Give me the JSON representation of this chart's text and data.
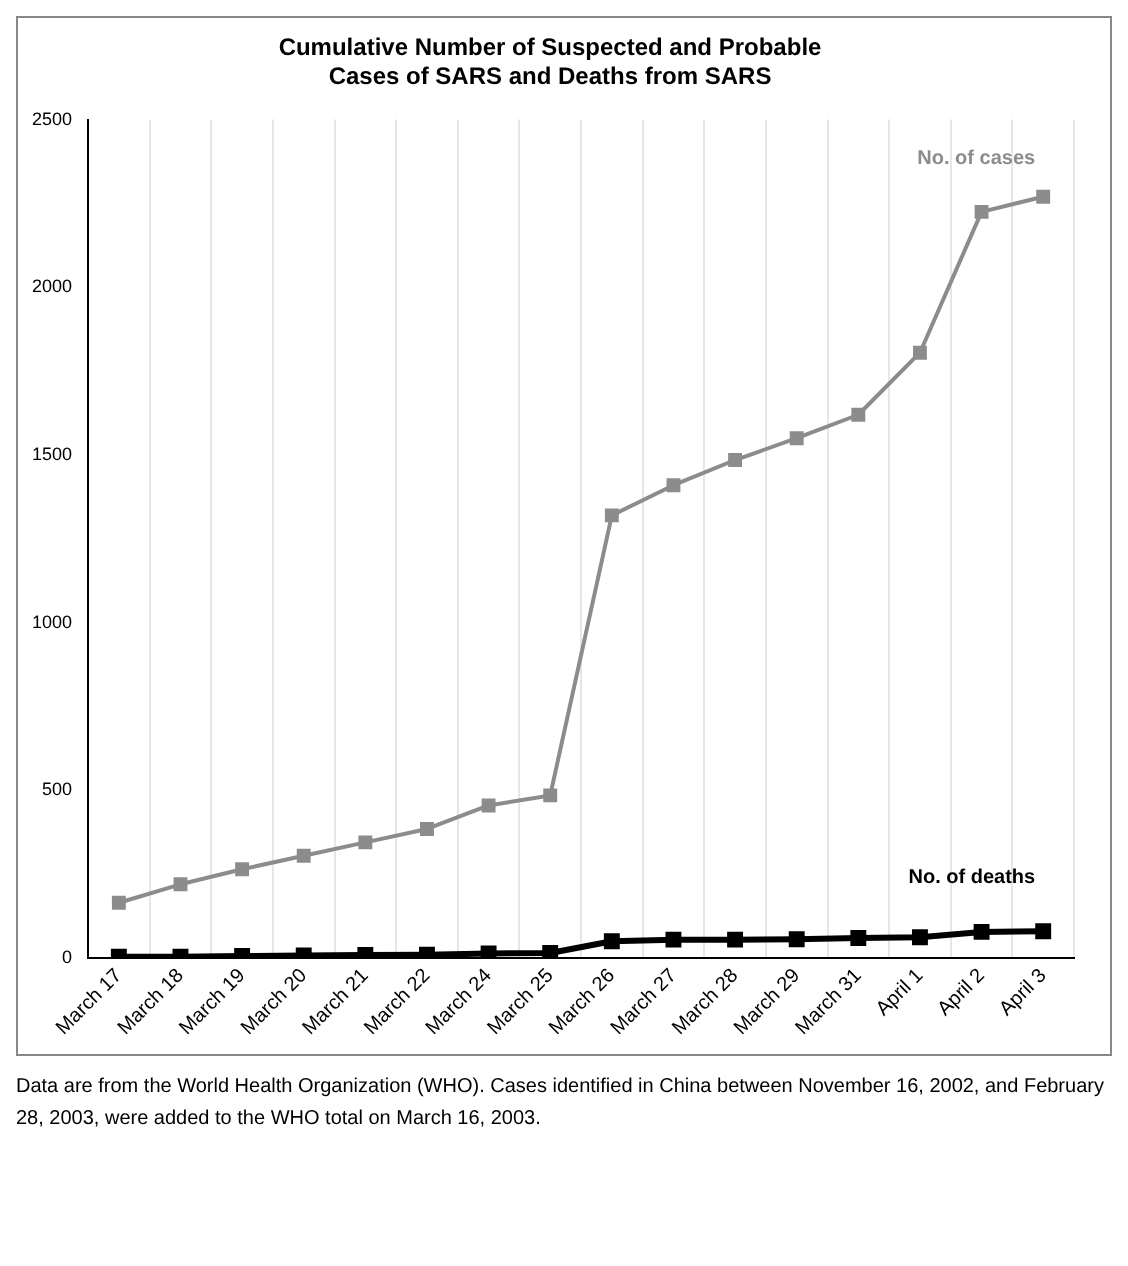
{
  "chart_data": {
    "type": "line",
    "title": "Cumulative Number of Suspected and Probable\nCases of SARS and Deaths from SARS",
    "categories": [
      "March 17",
      "March 18",
      "March 19",
      "March 20",
      "March 21",
      "March 22",
      "March 24",
      "March 25",
      "March 26",
      "March 27",
      "March 28",
      "March 29",
      "March 31",
      "April 1",
      "April 2",
      "April 3"
    ],
    "series": [
      {
        "name": "No. of cases",
        "color": "#8c8c8c",
        "values": [
          165,
          220,
          265,
          305,
          345,
          385,
          455,
          485,
          1320,
          1410,
          1485,
          1550,
          1620,
          1805,
          2225,
          2270
        ]
      },
      {
        "name": "No. of deaths",
        "color": "#000000",
        "values": [
          4,
          4,
          6,
          8,
          9,
          10,
          14,
          15,
          50,
          55,
          55,
          56,
          60,
          62,
          78,
          80
        ]
      }
    ],
    "ylim": [
      0,
      2500
    ],
    "yticks": [
      0,
      500,
      1000,
      1500,
      2000,
      2500
    ],
    "grid": "x",
    "marker": "square",
    "line_style": "solid",
    "legend": false,
    "annotations": [
      "Data are from the World Health Organization (WHO). Cases identified in China between November 16, 2002, and February 28, 2003, were added to the WHO total on March 16, 2003."
    ]
  }
}
